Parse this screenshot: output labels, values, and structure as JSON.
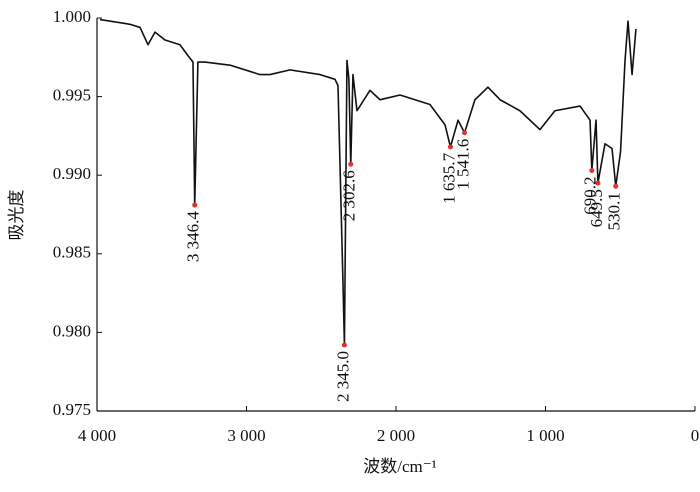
{
  "chart_data": {
    "type": "line",
    "xlabel": "波数/cm⁻¹",
    "ylabel": "吸光度",
    "xlim": [
      4000,
      0
    ],
    "ylim": [
      0.975,
      1.0
    ],
    "xticks": [
      {
        "value": 4000,
        "label": "4 000"
      },
      {
        "value": 3000,
        "label": "3 000"
      },
      {
        "value": 2000,
        "label": "2 000"
      },
      {
        "value": 1000,
        "label": "1 000"
      },
      0
    ],
    "yticks": [
      {
        "value": 1.0,
        "label": "1.000"
      },
      {
        "value": 0.995,
        "label": "0.995"
      },
      {
        "value": 0.99,
        "label": "0.990"
      },
      {
        "value": 0.985,
        "label": "0.985"
      },
      {
        "value": 0.98,
        "label": "0.980"
      },
      {
        "value": 0.975,
        "label": "0.975"
      }
    ],
    "series": [
      {
        "color": "#111111",
        "x": [
          3980,
          3780,
          3712,
          3659,
          3612,
          3545,
          3445,
          3391,
          3358,
          3346.4,
          3325,
          3278,
          3110,
          2910,
          2843,
          2709,
          2508,
          2408,
          2388,
          2355,
          2345.0,
          2328,
          2315,
          2302.6,
          2288,
          2261,
          2174,
          2107,
          1973,
          1773,
          1672,
          1635.7,
          1585,
          1541.6,
          1472,
          1385,
          1304,
          1171,
          1037,
          937,
          769,
          702,
          690.2,
          662,
          649.5,
          602,
          555,
          530.1,
          498,
          468,
          448,
          421,
          395
        ],
        "values": [
          0.9999,
          0.9996,
          0.9994,
          0.9983,
          0.9991,
          0.9986,
          0.9983,
          0.9976,
          0.9972,
          0.9881,
          0.9972,
          0.9972,
          0.997,
          0.9964,
          0.9964,
          0.9967,
          0.9964,
          0.9961,
          0.9957,
          0.9833,
          0.9792,
          0.9973,
          0.9961,
          0.9907,
          0.9964,
          0.9941,
          0.9954,
          0.9948,
          0.9951,
          0.9945,
          0.9932,
          0.9918,
          0.9935,
          0.9927,
          0.9948,
          0.9956,
          0.9948,
          0.9941,
          0.9929,
          0.9941,
          0.9944,
          0.9935,
          0.9903,
          0.9935,
          0.9895,
          0.992,
          0.9917,
          0.9893,
          0.9915,
          0.9973,
          0.9998,
          0.9964,
          0.9993
        ]
      }
    ],
    "annotations": [
      {
        "text": "3 346.4",
        "x": 3346.4,
        "y": 0.9881
      },
      {
        "text": "2 345.0",
        "x": 2345.0,
        "y": 0.9792
      },
      {
        "text": "2 302.6",
        "x": 2302.6,
        "y": 0.9907
      },
      {
        "text": "1 635.7",
        "x": 1635.7,
        "y": 0.9918
      },
      {
        "text": "1 541.6",
        "x": 1541.6,
        "y": 0.9927
      },
      {
        "text": "690.2",
        "x": 690.2,
        "y": 0.9903
      },
      {
        "text": "649.5",
        "x": 649.5,
        "y": 0.9895
      },
      {
        "text": "530.1",
        "x": 530.1,
        "y": 0.9893
      }
    ]
  }
}
